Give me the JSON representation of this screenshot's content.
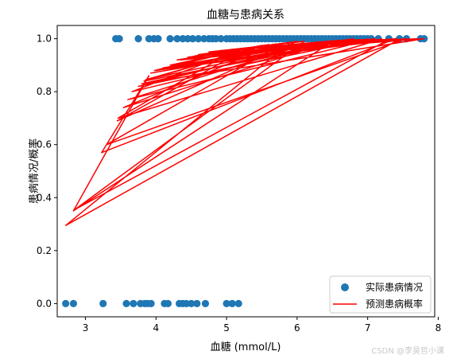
{
  "chart_data": {
    "type": "scatter",
    "title": "血糖与患病关系",
    "xlabel": "血糖 (mmol/L)",
    "ylabel": "患病情况/概率",
    "xlim": [
      2.6,
      7.95
    ],
    "ylim": [
      -0.05,
      1.05
    ],
    "xticks": [
      3,
      4,
      5,
      6,
      7,
      8
    ],
    "yticks": [
      0.0,
      0.2,
      0.4,
      0.6,
      0.8,
      1.0
    ],
    "ytick_labels": [
      "0.0",
      "0.2",
      "0.4",
      "0.6",
      "0.8",
      "1.0"
    ],
    "grid": false,
    "legend_position": "lower-right",
    "colors": {
      "scatter": "#1f77b4",
      "line": "#ff0000"
    },
    "series": [
      {
        "name": "实际患病情况",
        "kind": "scatter",
        "points": [
          [
            2.72,
            0
          ],
          [
            2.83,
            0
          ],
          [
            3.25,
            0
          ],
          [
            3.58,
            0
          ],
          [
            3.68,
            0
          ],
          [
            3.78,
            0
          ],
          [
            3.84,
            0
          ],
          [
            3.88,
            0
          ],
          [
            3.93,
            0
          ],
          [
            4.12,
            0
          ],
          [
            4.17,
            0
          ],
          [
            4.33,
            0
          ],
          [
            4.38,
            0
          ],
          [
            4.43,
            0
          ],
          [
            4.5,
            0
          ],
          [
            4.58,
            0
          ],
          [
            4.7,
            0
          ],
          [
            5.0,
            0
          ],
          [
            5.08,
            0
          ],
          [
            5.17,
            0
          ],
          [
            3.43,
            1
          ],
          [
            3.48,
            1
          ],
          [
            3.75,
            1
          ],
          [
            3.9,
            1
          ],
          [
            3.97,
            1
          ],
          [
            4.03,
            1
          ],
          [
            4.2,
            1
          ],
          [
            4.3,
            1
          ],
          [
            4.38,
            1
          ],
          [
            4.45,
            1
          ],
          [
            4.52,
            1
          ],
          [
            4.6,
            1
          ],
          [
            4.68,
            1
          ],
          [
            4.75,
            1
          ],
          [
            4.8,
            1
          ],
          [
            4.85,
            1
          ],
          [
            4.92,
            1
          ],
          [
            5.0,
            1
          ],
          [
            5.05,
            1
          ],
          [
            5.1,
            1
          ],
          [
            5.15,
            1
          ],
          [
            5.2,
            1
          ],
          [
            5.25,
            1
          ],
          [
            5.3,
            1
          ],
          [
            5.35,
            1
          ],
          [
            5.4,
            1
          ],
          [
            5.45,
            1
          ],
          [
            5.5,
            1
          ],
          [
            5.55,
            1
          ],
          [
            5.6,
            1
          ],
          [
            5.65,
            1
          ],
          [
            5.7,
            1
          ],
          [
            5.75,
            1
          ],
          [
            5.8,
            1
          ],
          [
            5.85,
            1
          ],
          [
            5.9,
            1
          ],
          [
            5.95,
            1
          ],
          [
            6.0,
            1
          ],
          [
            6.05,
            1
          ],
          [
            6.1,
            1
          ],
          [
            6.15,
            1
          ],
          [
            6.2,
            1
          ],
          [
            6.25,
            1
          ],
          [
            6.3,
            1
          ],
          [
            6.35,
            1
          ],
          [
            6.4,
            1
          ],
          [
            6.45,
            1
          ],
          [
            6.5,
            1
          ],
          [
            6.55,
            1
          ],
          [
            6.6,
            1
          ],
          [
            6.65,
            1
          ],
          [
            6.7,
            1
          ],
          [
            6.75,
            1
          ],
          [
            6.8,
            1
          ],
          [
            6.85,
            1
          ],
          [
            6.9,
            1
          ],
          [
            6.95,
            1
          ],
          [
            7.0,
            1
          ],
          [
            7.05,
            1
          ],
          [
            7.15,
            1
          ],
          [
            7.3,
            1
          ],
          [
            7.45,
            1
          ],
          [
            7.55,
            1
          ],
          [
            7.75,
            1
          ],
          [
            7.8,
            1
          ]
        ]
      },
      {
        "name": "预测患病概率",
        "kind": "line",
        "points": [
          [
            3.92,
            0.87
          ],
          [
            6.8,
            1.0
          ],
          [
            4.1,
            0.89
          ],
          [
            6.2,
            0.985
          ],
          [
            3.6,
            0.77
          ],
          [
            7.1,
            1.0
          ],
          [
            4.3,
            0.92
          ],
          [
            5.7,
            0.98
          ],
          [
            3.54,
            0.74
          ],
          [
            6.5,
            0.99
          ],
          [
            2.83,
            0.35
          ],
          [
            3.9,
            0.86
          ],
          [
            3.23,
            0.57
          ],
          [
            7.4,
            1.0
          ],
          [
            4.6,
            0.94
          ],
          [
            6.0,
            0.99
          ],
          [
            3.45,
            0.69
          ],
          [
            5.3,
            0.965
          ],
          [
            4.0,
            0.88
          ],
          [
            6.3,
            0.988
          ],
          [
            3.75,
            0.82
          ],
          [
            7.0,
            0.998
          ],
          [
            4.45,
            0.93
          ],
          [
            5.9,
            0.985
          ],
          [
            2.72,
            0.295
          ],
          [
            7.45,
            0.998
          ],
          [
            4.2,
            0.9
          ],
          [
            5.5,
            0.975
          ],
          [
            3.83,
            0.84
          ],
          [
            6.9,
            0.997
          ],
          [
            4.75,
            0.95
          ],
          [
            6.1,
            0.99
          ],
          [
            2.85,
            0.355
          ],
          [
            7.3,
            0.997
          ],
          [
            3.98,
            0.88
          ],
          [
            5.2,
            0.96
          ],
          [
            3.66,
            0.8
          ],
          [
            6.7,
            0.996
          ],
          [
            4.5,
            0.93
          ],
          [
            5.8,
            0.982
          ],
          [
            3.3,
            0.6
          ],
          [
            7.55,
            1.0
          ],
          [
            4.35,
            0.92
          ],
          [
            5.1,
            0.955
          ],
          [
            3.46,
            0.7
          ],
          [
            7.2,
            0.999
          ],
          [
            4.05,
            0.885
          ],
          [
            6.4,
            0.99
          ],
          [
            3.85,
            0.845
          ],
          [
            5.6,
            0.978
          ],
          [
            4.55,
            0.935
          ],
          [
            7.8,
            1.0
          ],
          [
            3.8,
            0.83
          ],
          [
            6.6,
            0.994
          ],
          [
            4.9,
            0.955
          ],
          [
            7.7,
            1.0
          ]
        ]
      }
    ]
  },
  "watermark": "CSDN @李昊哲小课"
}
